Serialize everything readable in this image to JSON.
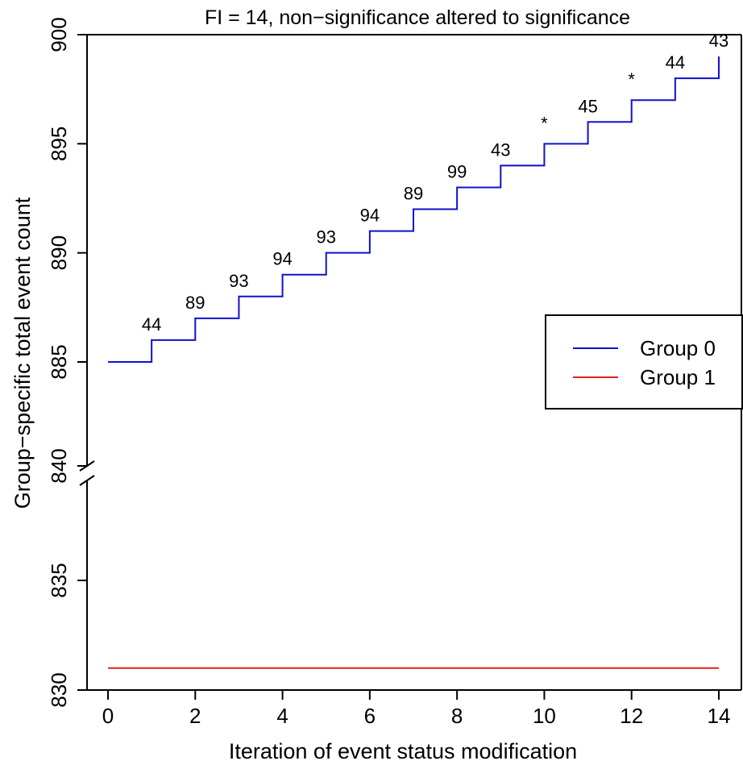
{
  "chart_data": {
    "type": "line",
    "title": "FI = 14, non−significance altered to significance",
    "xlabel": "Iteration of event status modification",
    "ylabel": "Group−specific total event count",
    "xlim": [
      0,
      14
    ],
    "xticks": [
      "0",
      "2",
      "4",
      "6",
      "8",
      "10",
      "12",
      "14"
    ],
    "upper_ylim": [
      840,
      900
    ],
    "upper_yticks": [
      "840",
      "885",
      "890",
      "895",
      "900"
    ],
    "lower_ylim": [
      830,
      840
    ],
    "lower_yticks": [
      "830",
      "835",
      "840"
    ],
    "axis_break": [
      840,
      885
    ],
    "series": [
      {
        "name": "Group 0",
        "color": "#1010d0",
        "step": true,
        "x": [
          0,
          1,
          2,
          3,
          4,
          5,
          6,
          7,
          8,
          9,
          10,
          11,
          12,
          13,
          14
        ],
        "y": [
          885,
          886,
          887,
          888,
          889,
          890,
          891,
          892,
          893,
          894,
          895,
          896,
          897,
          898,
          899
        ]
      },
      {
        "name": "Group 1",
        "color": "#e02020",
        "step": true,
        "x": [
          0,
          14
        ],
        "y": [
          831,
          831
        ]
      }
    ],
    "step_labels": [
      {
        "x": 1,
        "y": 886,
        "text": "44"
      },
      {
        "x": 2,
        "y": 887,
        "text": "89"
      },
      {
        "x": 3,
        "y": 888,
        "text": "93"
      },
      {
        "x": 4,
        "y": 889,
        "text": "94"
      },
      {
        "x": 5,
        "y": 890,
        "text": "93"
      },
      {
        "x": 6,
        "y": 891,
        "text": "94"
      },
      {
        "x": 7,
        "y": 892,
        "text": "89"
      },
      {
        "x": 8,
        "y": 893,
        "text": "99"
      },
      {
        "x": 9,
        "y": 894,
        "text": "43"
      },
      {
        "x": 10,
        "y": 895,
        "text": "*"
      },
      {
        "x": 11,
        "y": 896,
        "text": "45"
      },
      {
        "x": 12,
        "y": 897,
        "text": "*"
      },
      {
        "x": 13,
        "y": 898,
        "text": "44"
      },
      {
        "x": 14,
        "y": 899,
        "text": "43"
      }
    ],
    "legend": {
      "placement": "right",
      "entries": [
        {
          "label": "Group 0",
          "color": "#1010d0"
        },
        {
          "label": "Group 1",
          "color": "#e02020"
        }
      ]
    }
  }
}
